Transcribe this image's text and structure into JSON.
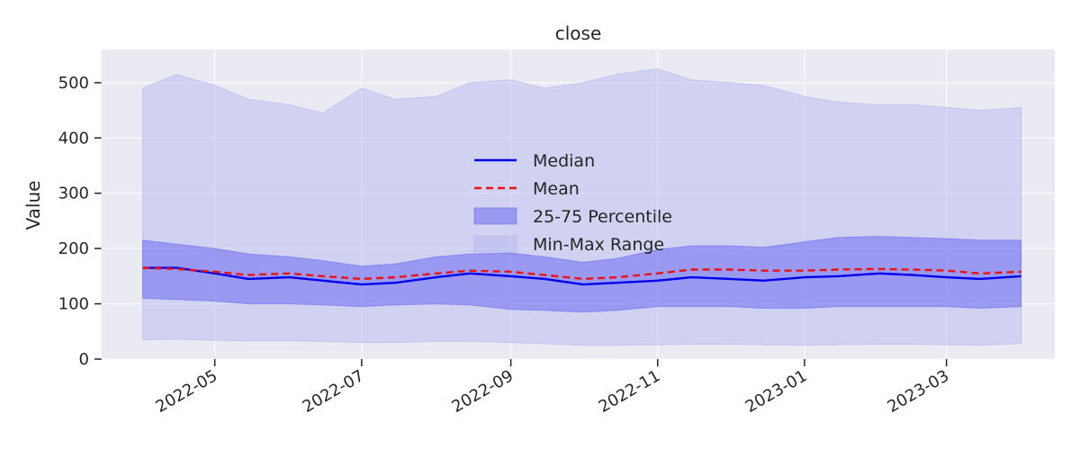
{
  "chart_data": {
    "type": "area",
    "title": "close",
    "xlabel": "",
    "ylabel": "Value",
    "ylim": [
      0,
      560
    ],
    "xlim": [
      "2022-03-15",
      "2023-04-15"
    ],
    "y_ticks": [
      0,
      100,
      200,
      300,
      400,
      500
    ],
    "x_ticks": [
      "2022-05",
      "2022-07",
      "2022-09",
      "2022-11",
      "2023-01",
      "2023-03"
    ],
    "grid": true,
    "legend_position": "center",
    "x": [
      "2022-04-01",
      "2022-04-15",
      "2022-05-01",
      "2022-05-15",
      "2022-06-01",
      "2022-06-15",
      "2022-07-01",
      "2022-07-15",
      "2022-08-01",
      "2022-08-15",
      "2022-09-01",
      "2022-09-15",
      "2022-10-01",
      "2022-10-15",
      "2022-11-01",
      "2022-11-15",
      "2022-12-01",
      "2022-12-15",
      "2023-01-01",
      "2023-01-15",
      "2023-02-01",
      "2023-02-15",
      "2023-03-01",
      "2023-03-15",
      "2023-04-01"
    ],
    "series": [
      {
        "name": "Median",
        "color": "#0000ee",
        "style": "solid",
        "values": [
          165,
          165,
          155,
          145,
          148,
          142,
          135,
          138,
          148,
          155,
          150,
          145,
          135,
          138,
          142,
          148,
          145,
          142,
          148,
          150,
          155,
          152,
          148,
          145,
          150
        ]
      },
      {
        "name": "Mean",
        "color": "#ee1111",
        "style": "dashed",
        "values": [
          165,
          163,
          158,
          152,
          155,
          150,
          145,
          148,
          155,
          160,
          158,
          152,
          145,
          148,
          155,
          162,
          162,
          160,
          160,
          162,
          163,
          162,
          160,
          155,
          158
        ]
      },
      {
        "name": "25-75 Percentile",
        "color": "#6b6bf2",
        "kind": "band",
        "lower": [
          110,
          108,
          105,
          100,
          100,
          98,
          95,
          98,
          100,
          98,
          90,
          88,
          85,
          88,
          95,
          95,
          95,
          92,
          92,
          95,
          95,
          95,
          95,
          92,
          95
        ],
        "upper": [
          215,
          208,
          200,
          190,
          185,
          178,
          168,
          172,
          185,
          190,
          192,
          185,
          175,
          182,
          198,
          205,
          205,
          202,
          212,
          220,
          222,
          220,
          218,
          215,
          215
        ]
      },
      {
        "name": "Min-Max Range",
        "color": "#b4b4f0",
        "kind": "band",
        "lower": [
          35,
          36,
          34,
          33,
          33,
          32,
          30,
          30,
          32,
          32,
          30,
          28,
          25,
          25,
          26,
          27,
          27,
          26,
          25,
          26,
          27,
          27,
          26,
          25,
          28
        ],
        "upper": [
          490,
          515,
          495,
          470,
          460,
          445,
          490,
          470,
          475,
          500,
          505,
          490,
          500,
          515,
          525,
          505,
          500,
          495,
          475,
          465,
          460,
          460,
          455,
          450,
          455
        ]
      }
    ]
  }
}
